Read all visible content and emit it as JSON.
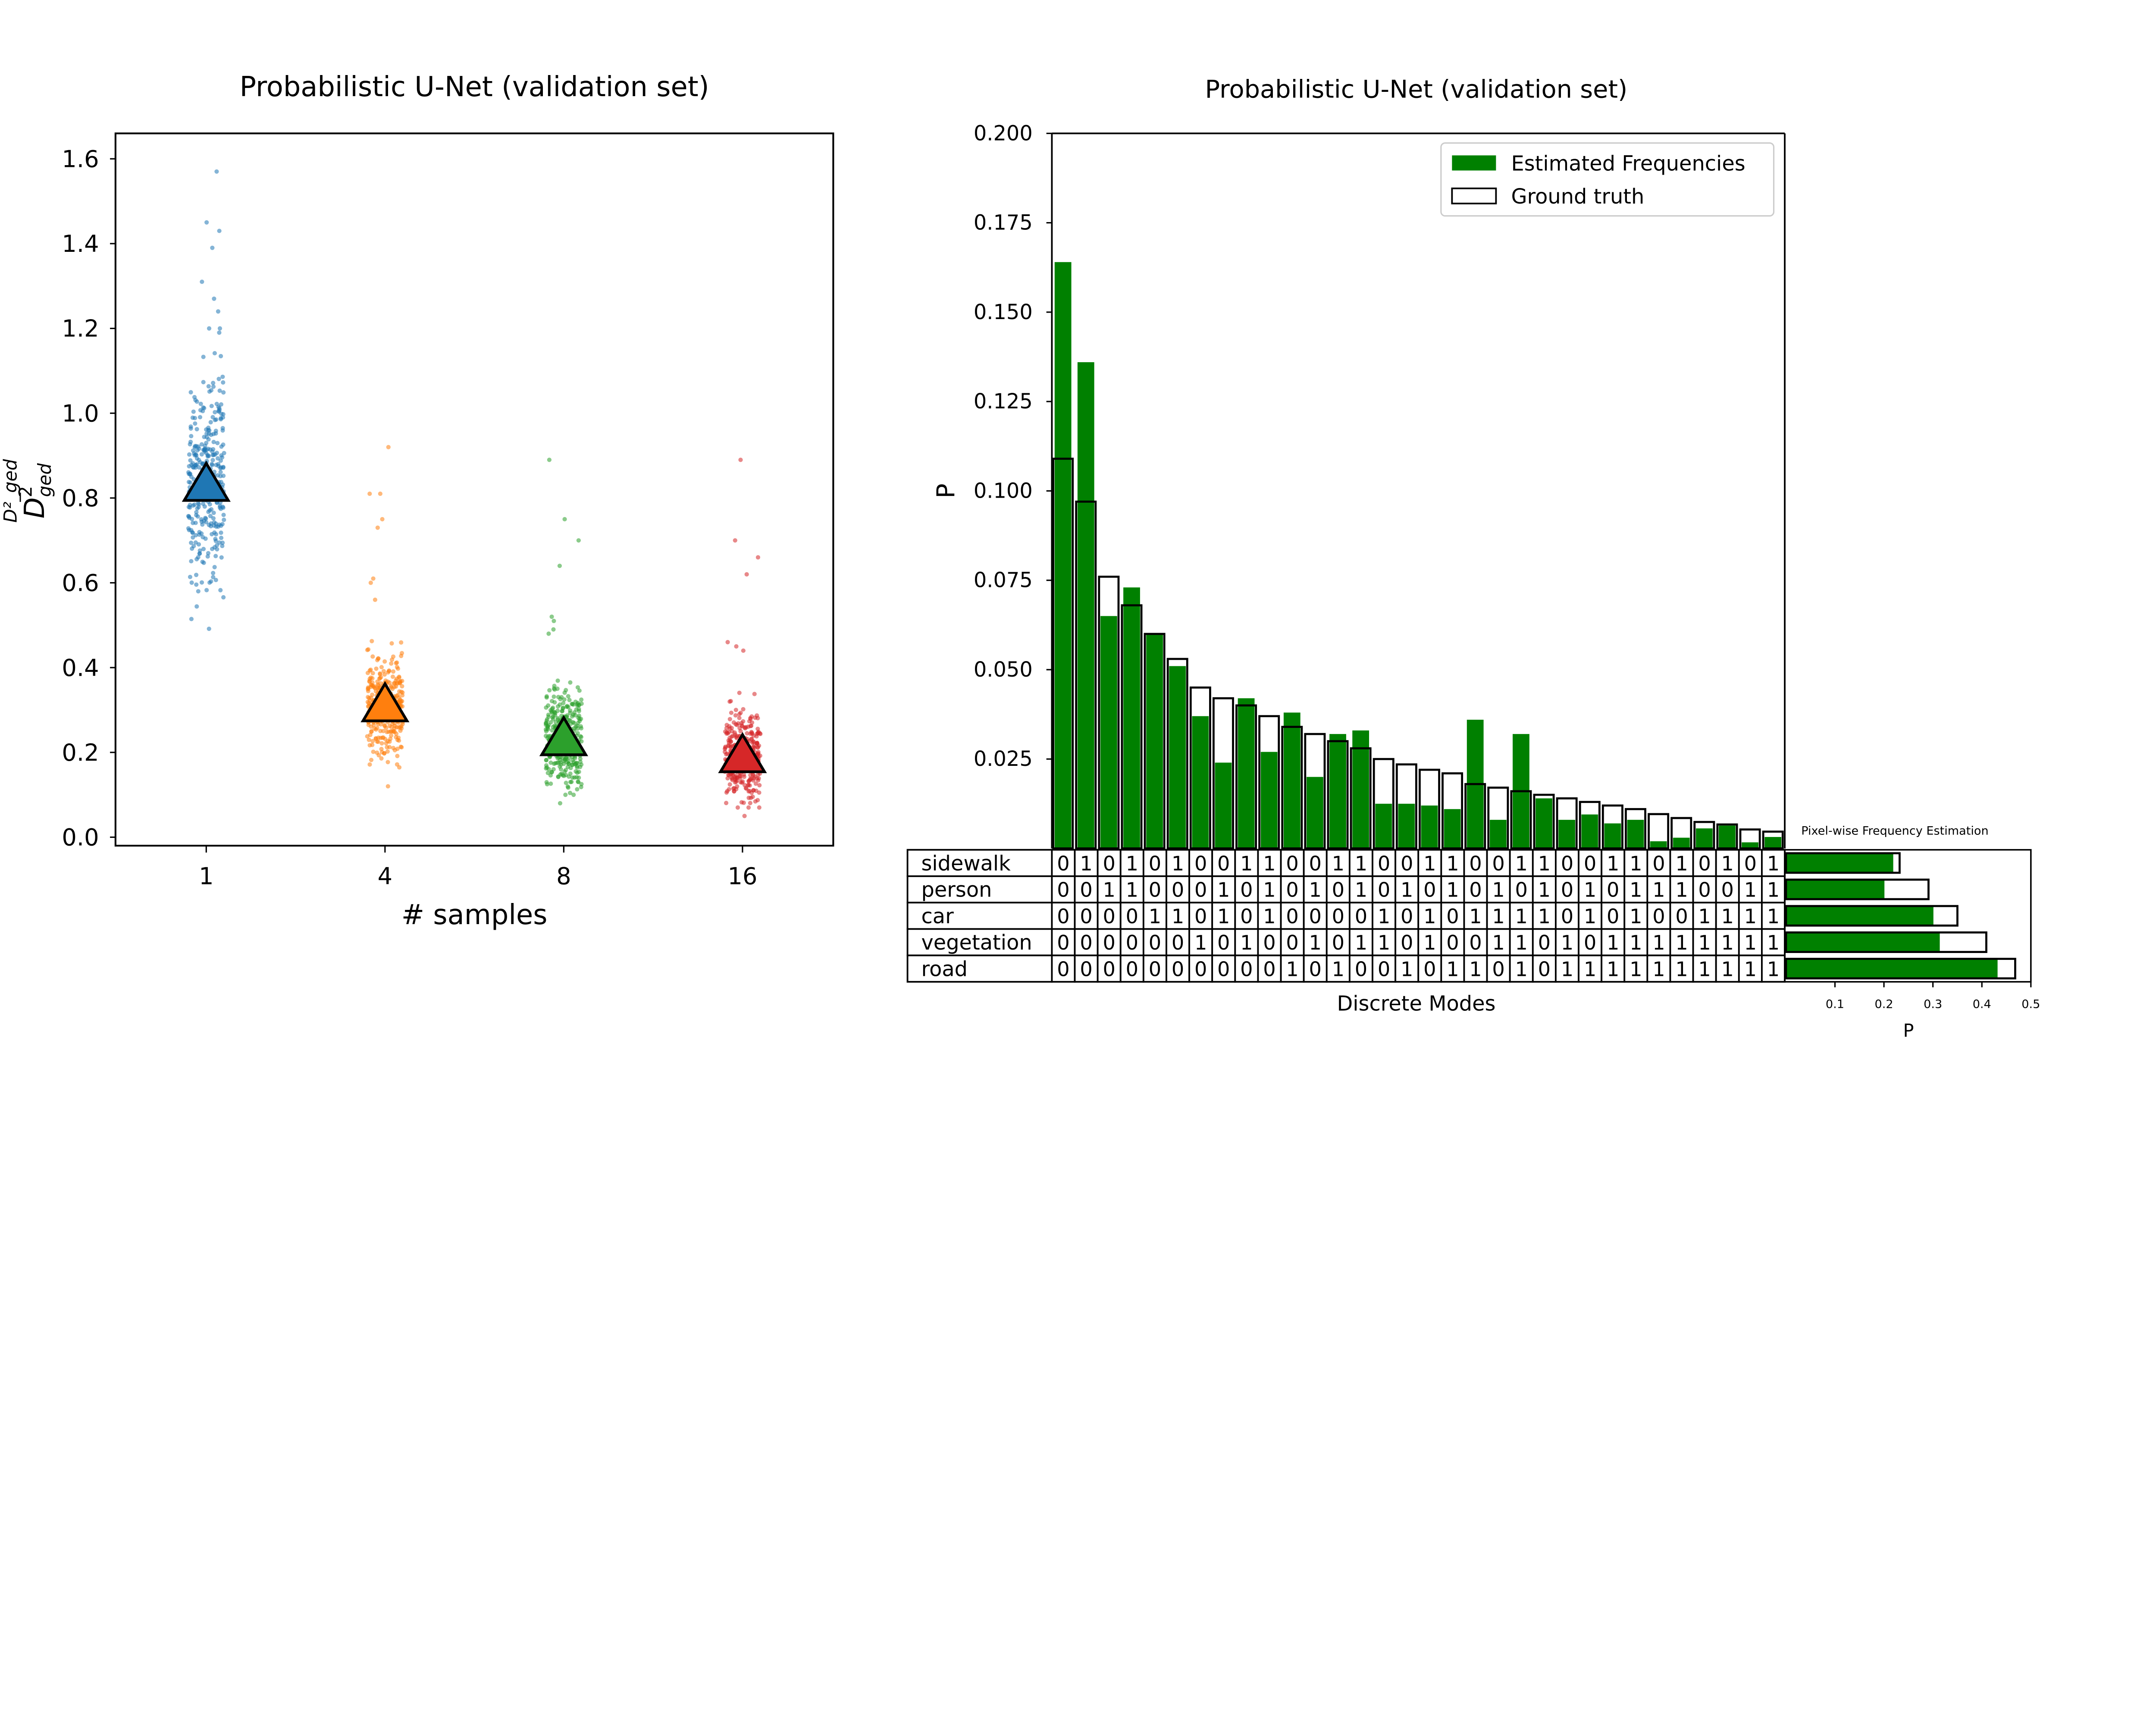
{
  "colors": {
    "series": [
      "#1f77b4",
      "#ff7f0e",
      "#2ca02c",
      "#d62728"
    ],
    "estimated": "#008000",
    "ground_truth_edge": "#000000"
  },
  "chart_data": [
    {
      "type": "scatter",
      "title": "Probabilistic U-Net (validation set)",
      "xlabel": "# samples",
      "ylabel": "D²_ged",
      "ylabel_main": "D",
      "ylabel_sup": "2",
      "ylabel_sub": "ged",
      "categories": [
        "1",
        "4",
        "8",
        "16"
      ],
      "ylim": [
        -0.02,
        1.66
      ],
      "yticks": [
        "0.0",
        "0.2",
        "0.4",
        "0.6",
        "0.8",
        "1.0",
        "1.2",
        "1.4",
        "1.6"
      ],
      "grid": false,
      "series": [
        {
          "category": "1",
          "mean": 0.83,
          "bulk_range": [
            0.45,
            1.15
          ],
          "outliers": [
            1.57,
            1.45,
            1.43,
            1.39,
            1.31,
            1.27,
            1.24,
            1.2,
            1.2,
            1.19
          ]
        },
        {
          "category": "4",
          "mean": 0.31,
          "bulk_range": [
            0.14,
            0.5
          ],
          "outliers": [
            0.92,
            0.81,
            0.81,
            0.75,
            0.73,
            0.61,
            0.6,
            0.56,
            0.12
          ]
        },
        {
          "category": "8",
          "mean": 0.23,
          "bulk_range": [
            0.1,
            0.46
          ],
          "outliers": [
            0.89,
            0.75,
            0.7,
            0.64,
            0.52,
            0.51,
            0.49,
            0.48,
            0.08
          ]
        },
        {
          "category": "16",
          "mean": 0.19,
          "bulk_range": [
            0.07,
            0.42
          ],
          "outliers": [
            0.89,
            0.7,
            0.66,
            0.62,
            0.46,
            0.45,
            0.44,
            0.05
          ]
        }
      ]
    },
    {
      "type": "bar",
      "title": "Probabilistic U-Net (validation set)",
      "xlabel": "Discrete Modes",
      "ylabel": "P",
      "ylim": [
        0,
        0.2
      ],
      "yticks": [
        "0.025",
        "0.050",
        "0.075",
        "0.100",
        "0.125",
        "0.150",
        "0.175",
        "0.200"
      ],
      "grid": false,
      "legend": {
        "placement": "top-right",
        "entries": [
          "Estimated Frequencies",
          "Ground truth"
        ]
      },
      "series": [
        {
          "name": "Estimated Frequencies",
          "values": [
            0.164,
            0.136,
            0.065,
            0.073,
            0.06,
            0.051,
            0.037,
            0.024,
            0.042,
            0.027,
            0.038,
            0.02,
            0.032,
            0.033,
            0.0125,
            0.0125,
            0.012,
            0.011,
            0.036,
            0.008,
            0.032,
            0.014,
            0.008,
            0.0095,
            0.007,
            0.008,
            0.002,
            0.003,
            0.0056,
            0.0064,
            0.0017,
            0.0032
          ]
        },
        {
          "name": "Ground truth",
          "values": [
            0.109,
            0.097,
            0.076,
            0.068,
            0.06,
            0.053,
            0.045,
            0.042,
            0.04,
            0.037,
            0.034,
            0.032,
            0.03,
            0.028,
            0.025,
            0.0235,
            0.022,
            0.021,
            0.018,
            0.017,
            0.016,
            0.015,
            0.014,
            0.013,
            0.012,
            0.011,
            0.0096,
            0.0085,
            0.0074,
            0.0067,
            0.0053,
            0.0047
          ]
        }
      ],
      "mode_table": {
        "classes": [
          "sidewalk",
          "person",
          "car",
          "vegetation",
          "road"
        ],
        "rows": [
          "01010100110011001100110011010101",
          "00110001010101010101010101110011",
          "00001101010000101011110101001111",
          "00000010100101101001101011111111",
          "00000000001010010110101111111111"
        ]
      }
    },
    {
      "type": "bar",
      "orientation": "horizontal",
      "title": "Pixel-wise Frequency Estimation",
      "xlabel": "P",
      "xlim": [
        0,
        0.5
      ],
      "xticks": [
        "0.1",
        "0.2",
        "0.3",
        "0.4",
        "0.5"
      ],
      "categories": [
        "sidewalk",
        "person",
        "car",
        "vegetation",
        "road"
      ],
      "series": [
        {
          "name": "Estimated Frequencies",
          "values": [
            0.219,
            0.201,
            0.301,
            0.314,
            0.432
          ]
        },
        {
          "name": "Ground truth",
          "values": [
            0.232,
            0.291,
            0.35,
            0.409,
            0.468
          ]
        }
      ]
    }
  ]
}
